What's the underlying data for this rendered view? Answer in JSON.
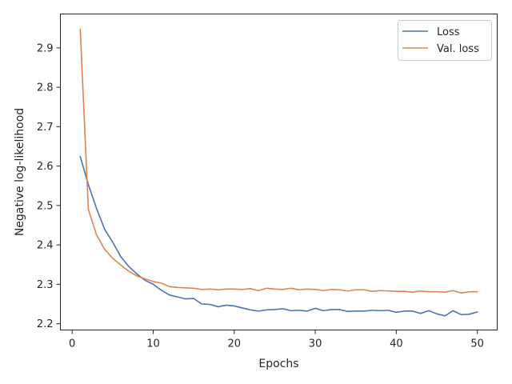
{
  "chart_data": {
    "type": "line",
    "xlabel": "Epochs",
    "ylabel": "Negative log-likelihood",
    "xlim": [
      -1.45,
      52.45
    ],
    "ylim": [
      2.184,
      2.986
    ],
    "xticks": [
      0,
      10,
      20,
      30,
      40,
      50
    ],
    "yticks": [
      2.2,
      2.3,
      2.4,
      2.5,
      2.6,
      2.7,
      2.8,
      2.9
    ],
    "xtick_labels": [
      "0",
      "10",
      "20",
      "30",
      "40",
      "50"
    ],
    "ytick_labels": [
      "2.2",
      "2.3",
      "2.4",
      "2.5",
      "2.6",
      "2.7",
      "2.8",
      "2.9"
    ],
    "grid": false,
    "legend_position": "top-right",
    "x": [
      1,
      2,
      3,
      4,
      5,
      6,
      7,
      8,
      9,
      10,
      11,
      12,
      13,
      14,
      15,
      16,
      17,
      18,
      19,
      20,
      21,
      22,
      23,
      24,
      25,
      26,
      27,
      28,
      29,
      30,
      31,
      32,
      33,
      34,
      35,
      36,
      37,
      38,
      39,
      40,
      41,
      42,
      43,
      44,
      45,
      46,
      47,
      48,
      49,
      50
    ],
    "series": [
      {
        "name": "Loss",
        "color": "#4c72b0",
        "values": [
          2.624,
          2.553,
          2.493,
          2.44,
          2.407,
          2.37,
          2.345,
          2.326,
          2.31,
          2.3,
          2.285,
          2.273,
          2.268,
          2.263,
          2.264,
          2.25,
          2.249,
          2.243,
          2.247,
          2.245,
          2.24,
          2.235,
          2.232,
          2.235,
          2.236,
          2.238,
          2.233,
          2.234,
          2.232,
          2.239,
          2.233,
          2.236,
          2.236,
          2.231,
          2.232,
          2.232,
          2.234,
          2.233,
          2.234,
          2.229,
          2.232,
          2.232,
          2.226,
          2.233,
          2.225,
          2.22,
          2.233,
          2.223,
          2.224,
          2.23
        ]
      },
      {
        "name": "Val. loss",
        "color": "#dd8452",
        "values": [
          2.947,
          2.49,
          2.426,
          2.389,
          2.366,
          2.349,
          2.333,
          2.321,
          2.314,
          2.307,
          2.303,
          2.294,
          2.292,
          2.291,
          2.29,
          2.287,
          2.288,
          2.286,
          2.288,
          2.288,
          2.287,
          2.289,
          2.284,
          2.29,
          2.288,
          2.287,
          2.29,
          2.286,
          2.288,
          2.287,
          2.284,
          2.287,
          2.286,
          2.283,
          2.286,
          2.286,
          2.282,
          2.284,
          2.283,
          2.282,
          2.282,
          2.28,
          2.283,
          2.281,
          2.281,
          2.28,
          2.284,
          2.278,
          2.281,
          2.281
        ]
      }
    ]
  }
}
